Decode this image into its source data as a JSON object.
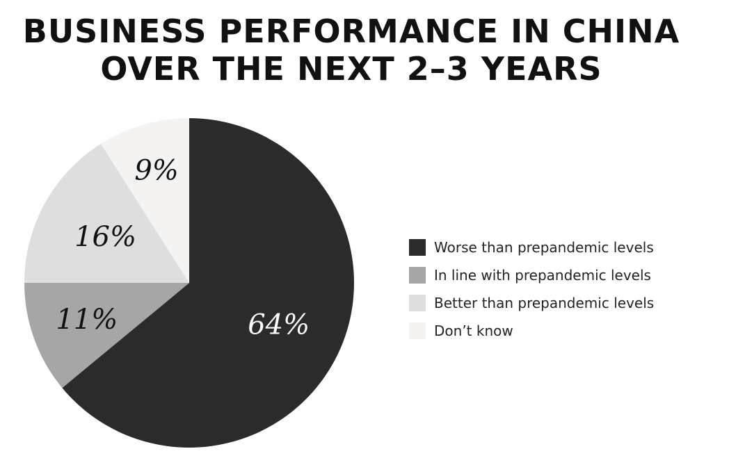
{
  "chart_data": {
    "type": "pie",
    "title": [
      "BUSINESS PERFORMANCE IN CHINA",
      "OVER THE NEXT 2–3 YEARS"
    ],
    "categories": [
      "Worse than prepandemic levels",
      "In line with prepandemic levels",
      "Better than prepandemic levels",
      "Don’t know"
    ],
    "values": [
      64,
      11,
      16,
      9
    ],
    "value_labels": [
      "64%",
      "11%",
      "16%",
      "9%"
    ],
    "colors": [
      "#2b2b2b",
      "#a6a6a6",
      "#dedede",
      "#f4f3f2"
    ],
    "label_colors": [
      "#ffffff",
      "#111111",
      "#111111",
      "#111111"
    ],
    "start": "12 o'clock",
    "direction": "clockwise",
    "legend_position": "right"
  }
}
